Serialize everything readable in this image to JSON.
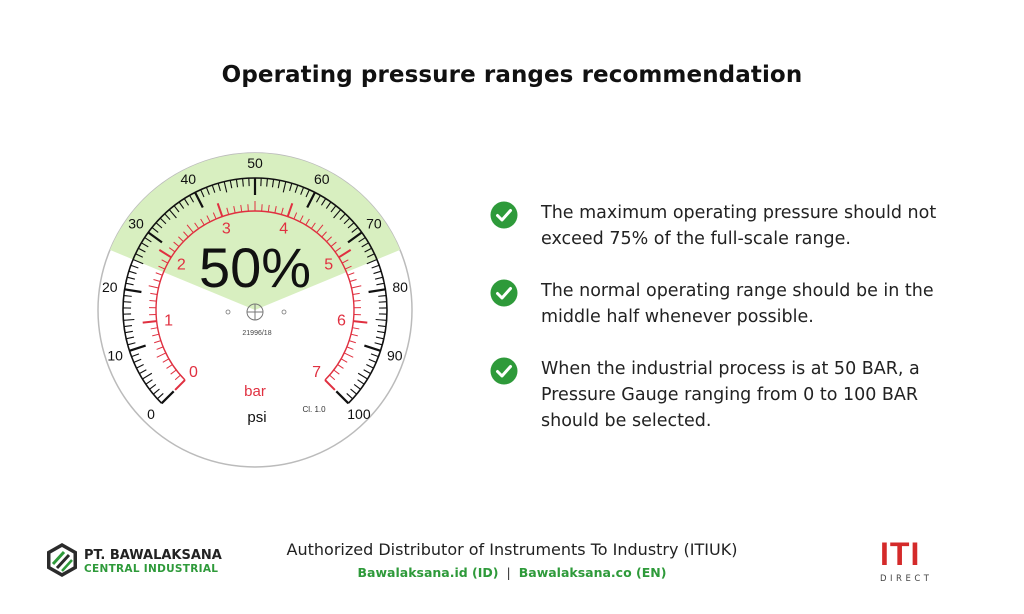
{
  "title": "Operating pressure ranges recommendation",
  "gauge": {
    "percent_label": "50%",
    "unit_inner": "bar",
    "unit_outer": "psi",
    "serial": "21996/18",
    "accuracy_class": "Cl. 1.0",
    "outer_scale": {
      "min": 0,
      "max": 100,
      "labels": [
        "0",
        "10",
        "20",
        "30",
        "40",
        "50",
        "60",
        "70",
        "80",
        "90",
        "100"
      ]
    },
    "inner_scale": {
      "min": 0,
      "max": 7,
      "labels": [
        "0",
        "1",
        "2",
        "3",
        "4",
        "5",
        "6",
        "7"
      ]
    },
    "recommended_zone_fraction": [
      0.25,
      0.75
    ],
    "colors": {
      "inner_scale": "#e03040",
      "zone": "#d8efc0",
      "outer_scale": "#111111"
    }
  },
  "points": [
    {
      "icon": "check-circle-icon",
      "text": "The maximum operating pressure should not exceed 75% of the full-scale range."
    },
    {
      "icon": "check-circle-icon",
      "text": "The normal operating range should be in the middle half whenever possible."
    },
    {
      "icon": "check-circle-icon",
      "text": "When the industrial process is at 50 BAR, a Pressure Gauge ranging from 0 to 100 BAR should be selected."
    }
  ],
  "footer": {
    "main": "Authorized Distributor of Instruments To Industry (ITIUK)",
    "link_id": "Bawalaksana.id (ID)",
    "separator": "|",
    "link_en": "Bawalaksana.co (EN)"
  },
  "brand_left": {
    "line1": "PT. BAWALAKSANA",
    "line2": "CENTRAL INDUSTRIAL"
  },
  "brand_right": {
    "mark": "ITI",
    "sub": "DIRECT"
  },
  "accent_color": "#2e9a3a"
}
